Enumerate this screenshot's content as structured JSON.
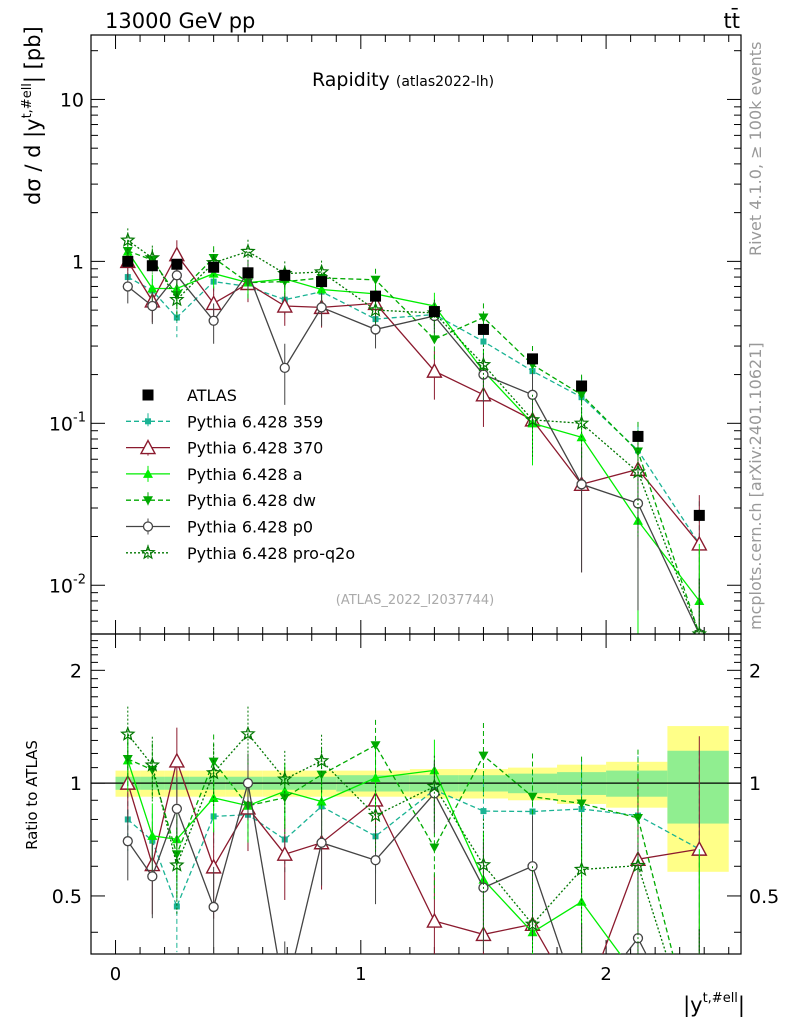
{
  "header": {
    "left": "13000 GeV pp",
    "right": "tt̄",
    "side_text_top": "Rivet 4.1.0, ≥ 100k events",
    "side_text_bottom": "mcplots.cern.ch [arXiv:2401.10621]"
  },
  "chart_data": {
    "type": "scatter",
    "title": "Rapidity",
    "subtitle": "(atlas2022-lh)",
    "analysis_label": "(ATLAS_2022_I2037744)",
    "xlabel": "|y^{t,#ell}|",
    "xlabel_base": "|y",
    "xlabel_sup": "t,#ell",
    "xlabel_end": "|",
    "ylabel": "dσ / d |y^{t,#ell}| [pb]",
    "ylabel_base": "dσ / d |y",
    "ylabel_sup": "t,#ell",
    "ylabel_end": "| [pb]",
    "ratio_ylabel": "Ratio to ATLAS",
    "xlim": [
      -0.1,
      2.55
    ],
    "ylim": [
      0.005,
      25
    ],
    "ratio_ylim": [
      0.35,
      2.5
    ],
    "x_ticks": [
      "0",
      "1",
      "2"
    ],
    "y_ticks_main": [
      {
        "base": "10",
        "exp": "-2",
        "value": 0.01
      },
      {
        "base": "10",
        "exp": "-1",
        "value": 0.1
      },
      {
        "base": "1",
        "exp": "",
        "value": 1
      },
      {
        "base": "10",
        "exp": "",
        "value": 10
      }
    ],
    "ratio_ticks": [
      "0.5",
      "1",
      "2"
    ],
    "x_bins": [
      [
        0.0,
        0.1
      ],
      [
        0.1,
        0.2
      ],
      [
        0.2,
        0.3
      ],
      [
        0.3,
        0.45
      ],
      [
        0.45,
        0.6
      ],
      [
        0.6,
        0.75
      ],
      [
        0.75,
        0.9
      ],
      [
        0.9,
        1.2
      ],
      [
        1.2,
        1.4
      ],
      [
        1.4,
        1.6
      ],
      [
        1.6,
        1.8
      ],
      [
        1.8,
        2.0
      ],
      [
        2.0,
        2.25
      ],
      [
        2.25,
        2.5
      ]
    ],
    "x": [
      0.05,
      0.15,
      0.25,
      0.4,
      0.54,
      0.69,
      0.84,
      1.06,
      1.3,
      1.5,
      1.7,
      1.9,
      2.13,
      2.38
    ],
    "data": {
      "name": "ATLAS",
      "values": [
        1.0,
        0.94,
        0.96,
        0.92,
        0.85,
        0.82,
        0.75,
        0.61,
        0.49,
        0.38,
        0.25,
        0.17,
        0.083,
        0.027
      ],
      "band_inner": [
        0.04,
        0.04,
        0.04,
        0.04,
        0.04,
        0.04,
        0.04,
        0.05,
        0.05,
        0.05,
        0.06,
        0.07,
        0.08,
        0.22
      ],
      "band_outer": [
        0.08,
        0.08,
        0.08,
        0.08,
        0.08,
        0.08,
        0.08,
        0.08,
        0.09,
        0.09,
        0.1,
        0.12,
        0.14,
        0.42
      ]
    },
    "series": [
      {
        "name": "Pythia 6.428 359",
        "color": "#1ab394",
        "dash": "5,3",
        "marker": "square-small",
        "values": [
          0.8,
          0.66,
          0.45,
          0.75,
          0.7,
          0.58,
          0.65,
          0.44,
          0.47,
          0.32,
          0.21,
          0.145,
          0.068,
          0.018
        ],
        "errors": [
          0.14,
          0.12,
          0.11,
          0.13,
          0.12,
          0.11,
          0.11,
          0.09,
          0.09,
          0.08,
          0.06,
          0.05,
          0.03,
          0.015
        ]
      },
      {
        "name": "Pythia 6.428 370",
        "color": "#8b1a2e",
        "dash": "",
        "marker": "triangle-open",
        "values": [
          1.0,
          0.57,
          1.1,
          0.55,
          0.73,
          0.53,
          0.52,
          0.55,
          0.21,
          0.15,
          0.105,
          0.042,
          0.052,
          0.018
        ],
        "errors": [
          0.2,
          0.15,
          0.25,
          0.15,
          0.17,
          0.13,
          0.13,
          0.12,
          0.07,
          0.055,
          0.045,
          0.03,
          0.035,
          0.018
        ]
      },
      {
        "name": "Pythia 6.428 a",
        "color": "#00ee00",
        "dash": "",
        "marker": "triangle-filled",
        "values": [
          1.15,
          0.68,
          0.68,
          0.84,
          0.74,
          0.78,
          0.67,
          0.63,
          0.53,
          0.21,
          0.1,
          0.082,
          0.025,
          0.008
        ],
        "errors": [
          0.2,
          0.15,
          0.15,
          0.16,
          0.15,
          0.15,
          0.13,
          0.12,
          0.11,
          0.07,
          0.045,
          0.035,
          0.02,
          0.01
        ]
      },
      {
        "name": "Pythia 6.428 dw",
        "color": "#00aa00",
        "dash": "5,3",
        "marker": "triangle-down",
        "values": [
          1.16,
          1.02,
          0.62,
          1.05,
          0.74,
          0.75,
          0.79,
          0.77,
          0.33,
          0.45,
          0.23,
          0.15,
          0.067,
          0.005
        ],
        "errors": [
          0.2,
          0.18,
          0.15,
          0.19,
          0.15,
          0.15,
          0.14,
          0.13,
          0.09,
          0.1,
          0.07,
          0.05,
          0.035,
          0.006
        ]
      },
      {
        "name": "Pythia 6.428 p0",
        "color": "#444444",
        "dash": "",
        "marker": "circle-open",
        "values": [
          0.7,
          0.53,
          0.82,
          0.43,
          0.85,
          0.22,
          0.52,
          0.38,
          0.46,
          0.2,
          0.15,
          0.042,
          0.032,
          0.005
        ],
        "errors": [
          0.15,
          0.12,
          0.17,
          0.12,
          0.17,
          0.09,
          0.12,
          0.09,
          0.1,
          0.065,
          0.055,
          0.03,
          0.025,
          0.006
        ]
      },
      {
        "name": "Pythia 6.428 pro-q2o",
        "color": "#007700",
        "dash": "2,2",
        "marker": "star-open",
        "values": [
          1.35,
          1.05,
          0.58,
          0.98,
          1.15,
          0.84,
          0.86,
          0.5,
          0.48,
          0.23,
          0.105,
          0.1,
          0.05,
          0.005
        ],
        "errors": [
          0.25,
          0.2,
          0.15,
          0.19,
          0.21,
          0.16,
          0.15,
          0.1,
          0.1,
          0.075,
          0.045,
          0.04,
          0.03,
          0.006
        ]
      }
    ]
  }
}
